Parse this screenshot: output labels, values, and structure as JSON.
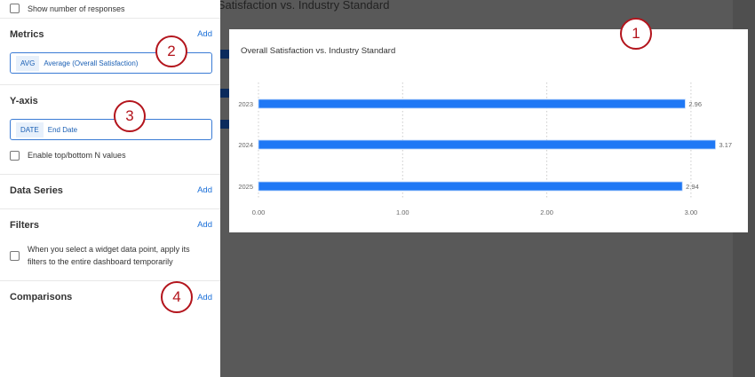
{
  "background": {
    "widget_title": "Overall Satisfaction vs. Industry Standard"
  },
  "sidebar": {
    "show_responses_label": "Show number of responses",
    "metrics": {
      "title": "Metrics",
      "add": "Add",
      "pill_tag": "AVG",
      "pill_label": "Average (Overall Satisfaction)"
    },
    "yaxis": {
      "title": "Y-axis",
      "pill_tag": "DATE",
      "pill_label": "End Date",
      "topn_label": "Enable top/bottom N values",
      "topn_checked": false
    },
    "data_series": {
      "title": "Data Series",
      "add": "Add"
    },
    "filters": {
      "title": "Filters",
      "add": "Add",
      "checkbox_label": "When you select a widget data point, apply its filters to the entire dashboard temporarily",
      "checked": false
    },
    "comparisons": {
      "title": "Comparisons",
      "add": "Add"
    }
  },
  "callouts": [
    "1",
    "2",
    "3",
    "4"
  ],
  "chart_data": {
    "type": "bar",
    "orientation": "horizontal",
    "title": "Overall Satisfaction vs. Industry Standard",
    "categories": [
      "2023",
      "2024",
      "2025"
    ],
    "values": [
      2.96,
      3.17,
      2.94
    ],
    "data_labels": [
      "2.96",
      "3.17",
      "2.94"
    ],
    "xticks": [
      "0.00",
      "1.00",
      "2.00",
      "3.00"
    ],
    "xlim": [
      0,
      3.2
    ],
    "grid": true,
    "bar_color": "#1f78f5"
  }
}
